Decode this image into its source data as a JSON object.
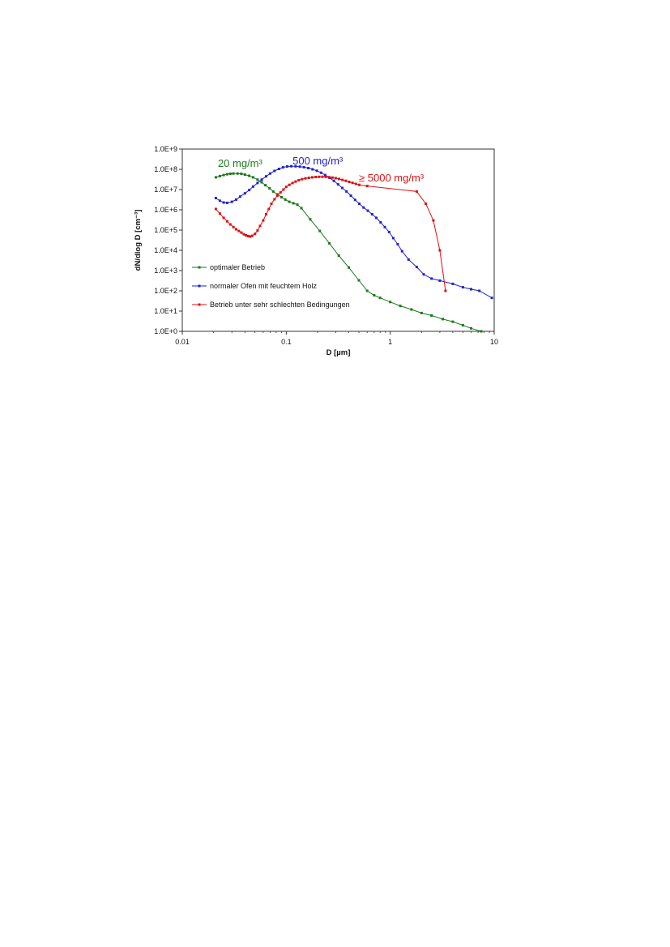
{
  "chart_data": {
    "type": "line",
    "xscale": "log",
    "yscale": "log",
    "xlim": [
      0.01,
      10
    ],
    "ylim": [
      1,
      1000000000
    ],
    "xlabel": "D [µm]",
    "ylabel": "dN/dlog D [cm⁻³]",
    "x_ticks": [
      "0.01",
      "0.1",
      "1",
      "10"
    ],
    "y_ticks": [
      "1.0E+0",
      "1.0E+1",
      "1.0E+2",
      "1.0E+3",
      "1.0E+4",
      "1.0E+5",
      "1.0E+6",
      "1.0E+7",
      "1.0E+8",
      "1.0E+9"
    ],
    "grid": false,
    "legend_position": "lower-left",
    "annotations": [
      {
        "text": "20 mg/m³",
        "color": "#1a7a1a",
        "x": 0.022,
        "y": 130000000
      },
      {
        "text": "500 mg/m³",
        "color": "#2222cc",
        "x": 0.115,
        "y": 170000000
      },
      {
        "text": "≥ 5000 mg/m³",
        "color": "#dd1111",
        "x": 0.5,
        "y": 25000000
      }
    ],
    "series": [
      {
        "name": "optimaler Betrieb",
        "color": "#1a7a1a",
        "x": [
          0.021,
          0.023,
          0.025,
          0.027,
          0.029,
          0.031,
          0.034,
          0.037,
          0.04,
          0.044,
          0.048,
          0.053,
          0.058,
          0.063,
          0.069,
          0.075,
          0.082,
          0.09,
          0.098,
          0.107,
          0.117,
          0.128,
          0.14,
          0.17,
          0.21,
          0.26,
          0.32,
          0.4,
          0.5,
          0.6,
          0.7,
          0.8,
          1.0,
          1.25,
          1.6,
          2.0,
          2.5,
          3.2,
          4.0,
          5.0,
          6.0,
          7.5
        ],
        "y": [
          40000000,
          46000000,
          52000000,
          57000000,
          60000000,
          62000000,
          62000000,
          60000000,
          55000000,
          48000000,
          40000000,
          31000000,
          23000000,
          16500000,
          11500000,
          8000000,
          5800000,
          4200000,
          3200000,
          2500000,
          2100000,
          1800000,
          1200000,
          340000,
          90000,
          22000,
          5500,
          1400,
          330,
          100,
          60,
          45,
          28,
          18,
          12,
          8,
          6,
          4,
          3,
          2,
          1.4,
          1
        ]
      },
      {
        "name": "normaler Ofen mit feuchtem Holz",
        "color": "#2222cc",
        "x": [
          0.021,
          0.023,
          0.025,
          0.027,
          0.03,
          0.033,
          0.036,
          0.04,
          0.044,
          0.048,
          0.053,
          0.058,
          0.064,
          0.07,
          0.077,
          0.085,
          0.093,
          0.102,
          0.112,
          0.123,
          0.135,
          0.148,
          0.163,
          0.179,
          0.197,
          0.216,
          0.237,
          0.261,
          0.287,
          0.315,
          0.346,
          0.38,
          0.418,
          0.459,
          0.504,
          0.554,
          0.609,
          0.669,
          0.735,
          0.808,
          0.888,
          0.976,
          1.07,
          1.18,
          1.3,
          1.5,
          1.8,
          2.1,
          2.5,
          3.0,
          4.0,
          5.0,
          6.0,
          7.2,
          9.5
        ],
        "y": [
          3800000,
          2800000,
          2300000,
          2200000,
          2500000,
          3200000,
          4500000,
          6500000,
          9500000,
          14000000,
          21000000,
          31000000,
          45000000,
          62000000,
          83000000,
          105000000,
          125000000,
          138000000,
          142000000,
          140000000,
          135000000,
          127000000,
          115000000,
          100000000,
          85000000,
          68000000,
          52000000,
          38000000,
          27000000,
          18000000,
          12000000,
          8000000,
          5000000,
          3100000,
          2000000,
          1300000,
          900000,
          600000,
          400000,
          240000,
          140000,
          80000,
          40000,
          20000,
          9000,
          3500,
          1500,
          650,
          400,
          320,
          220,
          150,
          120,
          100,
          45
        ]
      },
      {
        "name": "Betrieb unter sehr schlechten Bedingungen",
        "color": "#dd1111",
        "x": [
          0.021,
          0.023,
          0.025,
          0.027,
          0.029,
          0.031,
          0.033,
          0.035,
          0.037,
          0.039,
          0.041,
          0.043,
          0.045,
          0.047,
          0.05,
          0.053,
          0.056,
          0.06,
          0.064,
          0.068,
          0.072,
          0.077,
          0.082,
          0.088,
          0.094,
          0.1,
          0.107,
          0.115,
          0.123,
          0.132,
          0.142,
          0.153,
          0.165,
          0.178,
          0.192,
          0.207,
          0.223,
          0.24,
          0.258,
          0.278,
          0.299,
          0.322,
          0.347,
          0.374,
          0.403,
          0.434,
          0.467,
          0.503,
          0.6,
          1.8,
          2.2,
          2.6,
          3.0,
          3.4
        ],
        "y": [
          1100000,
          650000,
          400000,
          270000,
          190000,
          140000,
          110000,
          90000,
          75000,
          62000,
          55000,
          50000,
          48000,
          52000,
          65000,
          95000,
          160000,
          300000,
          600000,
          1100000,
          2000000,
          3300000,
          5000000,
          7200000,
          10000000,
          13500000,
          17000000,
          21000000,
          25000000,
          29000000,
          32500000,
          35500000,
          38000000,
          40000000,
          41500000,
          42500000,
          43000000,
          42500000,
          41000000,
          39000000,
          36500000,
          33500000,
          30000000,
          27000000,
          24000000,
          21500000,
          19000000,
          17000000,
          15000000,
          8000000,
          2000000,
          300000,
          10000,
          100
        ]
      }
    ]
  }
}
